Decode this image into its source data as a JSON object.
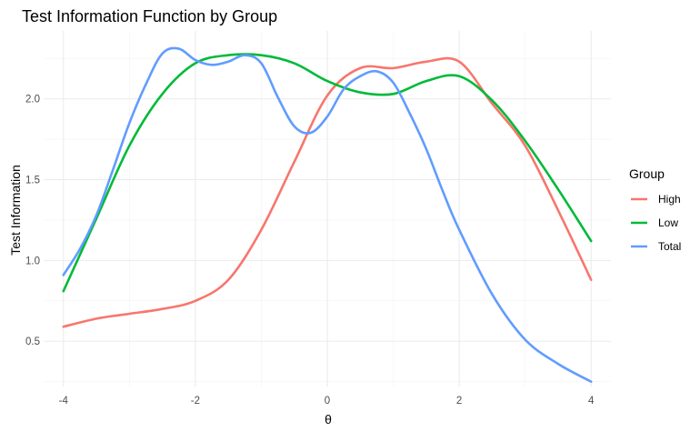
{
  "chart_data": {
    "type": "line",
    "title": "Test Information Function by Group",
    "xlabel": "θ",
    "ylabel": "Test Information",
    "xlim": [
      -4.3,
      4.3
    ],
    "ylim": [
      0.22,
      2.42
    ],
    "x_ticks": [
      -4,
      -2,
      0,
      2,
      4
    ],
    "x_tick_labels": [
      "-4",
      "-2",
      "0",
      "2",
      "4"
    ],
    "y_ticks": [
      0.5,
      1.0,
      1.5,
      2.0
    ],
    "y_tick_labels": [
      "0.5",
      "1.0",
      "1.5",
      "2.0"
    ],
    "grid": true,
    "legend": {
      "title": "Group",
      "position": "right"
    },
    "series": [
      {
        "name": "High",
        "color": "#F8766D",
        "x": [
          -4,
          -3.5,
          -3,
          -2.5,
          -2,
          -1.5,
          -1,
          -0.5,
          0,
          0.5,
          1,
          1.5,
          2,
          2.5,
          3,
          3.5,
          4
        ],
        "y": [
          0.59,
          0.64,
          0.67,
          0.7,
          0.75,
          0.88,
          1.19,
          1.61,
          2.02,
          2.19,
          2.19,
          2.23,
          2.23,
          1.97,
          1.71,
          1.31,
          0.88
        ]
      },
      {
        "name": "Low",
        "color": "#00BA38",
        "x": [
          -4,
          -3.5,
          -3,
          -2.5,
          -2,
          -1.5,
          -1,
          -0.5,
          0,
          0.5,
          1,
          1.5,
          2,
          2.5,
          3,
          3.5,
          4
        ],
        "y": [
          0.81,
          1.26,
          1.71,
          2.03,
          2.22,
          2.27,
          2.27,
          2.22,
          2.11,
          2.04,
          2.03,
          2.11,
          2.14,
          1.99,
          1.74,
          1.44,
          1.12
        ]
      },
      {
        "name": "Total",
        "color": "#619CFF",
        "x": [
          -4,
          -3.75,
          -3.5,
          -3.25,
          -3,
          -2.75,
          -2.5,
          -2.25,
          -2,
          -1.75,
          -1.5,
          -1.25,
          -1,
          -0.75,
          -0.5,
          -0.25,
          0,
          0.25,
          0.5,
          0.75,
          1,
          1.25,
          1.5,
          1.75,
          2,
          2.5,
          3,
          3.5,
          4
        ],
        "y": [
          0.91,
          1.07,
          1.28,
          1.56,
          1.85,
          2.09,
          2.28,
          2.31,
          2.24,
          2.21,
          2.23,
          2.27,
          2.22,
          2.01,
          1.83,
          1.79,
          1.89,
          2.06,
          2.14,
          2.17,
          2.1,
          1.91,
          1.69,
          1.43,
          1.19,
          0.79,
          0.51,
          0.36,
          0.25
        ]
      }
    ]
  }
}
